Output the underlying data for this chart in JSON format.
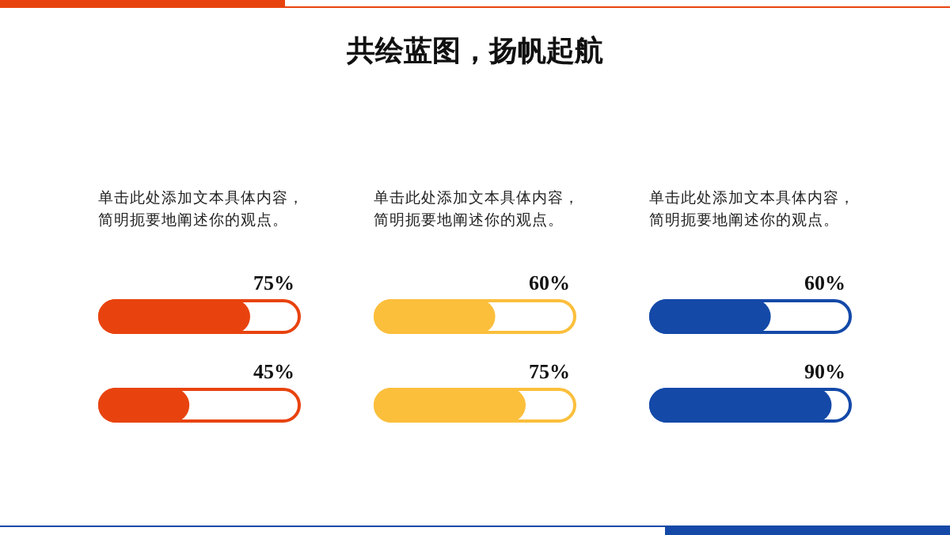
{
  "chart_data": [
    {
      "type": "bar",
      "orientation": "horizontal",
      "subtitle": "单击此处添加文本具体内容，简明扼要地阐述你的观点。",
      "categories": [
        null,
        null
      ],
      "values": [
        75,
        45
      ],
      "value_labels": [
        "75%",
        "45%"
      ],
      "color": "#e8430f",
      "xlim": [
        0,
        100
      ]
    },
    {
      "type": "bar",
      "orientation": "horizontal",
      "title": "共绘蓝图，扬帆起航",
      "subtitle": "单击此处添加文本具体内容，简明扼要地阐述你的观点。",
      "categories": [
        null,
        null
      ],
      "values": [
        60,
        75
      ],
      "value_labels": [
        "60%",
        "75%"
      ],
      "color": "#fbbf3c",
      "xlim": [
        0,
        100
      ]
    },
    {
      "type": "bar",
      "orientation": "horizontal",
      "subtitle": "单击此处添加文本具体内容，简明扼要地阐述你的观点。",
      "categories": [
        null,
        null
      ],
      "values": [
        60,
        90
      ],
      "value_labels": [
        "60%",
        "90%"
      ],
      "color": "#1449a8",
      "xlim": [
        0,
        100
      ]
    }
  ]
}
